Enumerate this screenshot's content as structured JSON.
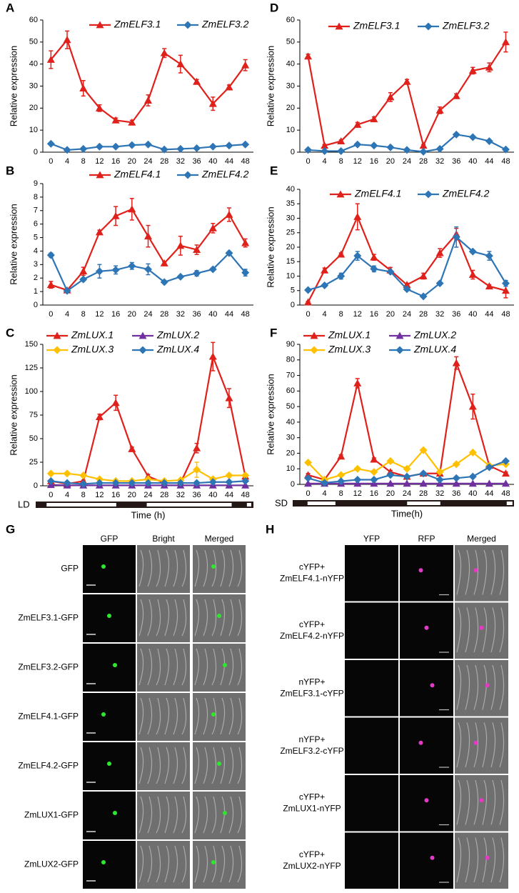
{
  "chart_data": [
    {
      "type": "line",
      "label": "A",
      "y_label": "Relative expression",
      "categories": [
        "0",
        "4",
        "8",
        "12",
        "16",
        "20",
        "24",
        "28",
        "32",
        "36",
        "40",
        "44",
        "48"
      ],
      "ylim": [
        0,
        60
      ],
      "yticks": [
        0,
        10,
        20,
        30,
        40,
        50,
        60
      ],
      "series": [
        {
          "name": "ZmELF3.1",
          "color": "#e0201b",
          "marker": "triangle",
          "values": [
            42,
            51,
            29,
            20,
            14.5,
            13.5,
            23.5,
            45,
            40,
            32,
            22,
            29.5,
            39.5
          ],
          "errors": [
            4,
            4,
            3.5,
            1.5,
            1,
            1,
            2.5,
            2,
            4,
            1,
            3,
            1,
            2.5
          ]
        },
        {
          "name": "ZmELF3.2",
          "color": "#2e75b6",
          "marker": "diamond",
          "values": [
            3.8,
            1,
            1.5,
            2.5,
            2.5,
            3.2,
            3.5,
            1.2,
            1.5,
            1.8,
            2.5,
            3,
            3.5
          ],
          "errors": [
            0.3,
            0.2,
            0.2,
            0.3,
            0.2,
            0.3,
            0.3,
            0.2,
            0.2,
            0.2,
            0.2,
            0.2,
            0.3
          ]
        }
      ]
    },
    {
      "type": "line",
      "label": "B",
      "y_label": "Relative expression",
      "categories": [
        "0",
        "4",
        "8",
        "12",
        "16",
        "20",
        "24",
        "28",
        "32",
        "36",
        "40",
        "44",
        "48"
      ],
      "ylim": [
        0,
        9
      ],
      "yticks": [
        0,
        1,
        2,
        3,
        4,
        5,
        6,
        7,
        8,
        9
      ],
      "series": [
        {
          "name": "ZmELF4.1",
          "color": "#e0201b",
          "marker": "triangle",
          "values": [
            1.5,
            1.1,
            2.5,
            5.4,
            6.6,
            7.1,
            5.1,
            3.1,
            4.4,
            4.1,
            5.7,
            6.7,
            4.6
          ],
          "errors": [
            0.25,
            0.1,
            0.3,
            0.15,
            0.7,
            0.8,
            0.8,
            0.1,
            0.7,
            0.35,
            0.35,
            0.5,
            0.3
          ]
        },
        {
          "name": "ZmELF4.2",
          "color": "#2e75b6",
          "marker": "diamond",
          "values": [
            3.7,
            1.05,
            1.9,
            2.5,
            2.6,
            2.9,
            2.65,
            1.7,
            2.1,
            2.35,
            2.65,
            3.85,
            2.4
          ],
          "errors": [
            0.15,
            0.1,
            0.1,
            0.5,
            0.3,
            0.25,
            0.4,
            0.1,
            0.1,
            0.2,
            0.1,
            0.1,
            0.25
          ]
        }
      ]
    },
    {
      "type": "line",
      "label": "C",
      "y_label": "Relative expression",
      "x_label": "Time (h)",
      "photoperiod": "LD",
      "categories": [
        "0",
        "4",
        "8",
        "12",
        "16",
        "20",
        "24",
        "28",
        "32",
        "36",
        "40",
        "44",
        "48"
      ],
      "ylim": [
        0,
        150
      ],
      "yticks": [
        0,
        25,
        50,
        75,
        100,
        125,
        150
      ],
      "series": [
        {
          "name": "ZmLUX.1",
          "color": "#e0201b",
          "marker": "triangle",
          "values": [
            5,
            2,
            5,
            73,
            88,
            39,
            10,
            3,
            3,
            40,
            137,
            93,
            10
          ],
          "errors": [
            1,
            1,
            1,
            3,
            8,
            2,
            2,
            1,
            1,
            5,
            15,
            10,
            2
          ]
        },
        {
          "name": "ZmLUX.2",
          "color": "#7030a0",
          "marker": "triangle",
          "values": [
            1,
            0.5,
            0.5,
            0.5,
            0.5,
            0.5,
            0.5,
            0.5,
            0.5,
            0.5,
            0.5,
            0.5,
            0.5
          ],
          "errors": [
            0.2,
            0.1,
            0.1,
            0.1,
            0.1,
            0.1,
            0.1,
            0.1,
            0.1,
            0.1,
            0.1,
            0.1,
            0.1
          ]
        },
        {
          "name": "ZmLUX.3",
          "color": "#ffc000",
          "marker": "diamond",
          "values": [
            13,
            13,
            11,
            7,
            5,
            5,
            7,
            5,
            6,
            17,
            7,
            11,
            11
          ],
          "errors": [
            1,
            1,
            1,
            1,
            1,
            1,
            1,
            1,
            1,
            8,
            1,
            1,
            1
          ]
        },
        {
          "name": "ZmLUX.4",
          "color": "#2e75b6",
          "marker": "diamond",
          "values": [
            5,
            3,
            2,
            3,
            3,
            3,
            3,
            3,
            3,
            3,
            4,
            4,
            5
          ],
          "errors": [
            0.5,
            0.5,
            0.5,
            0.5,
            0.5,
            0.5,
            0.5,
            0.5,
            0.5,
            0.5,
            0.5,
            0.5,
            0.5
          ]
        }
      ]
    },
    {
      "type": "line",
      "label": "D",
      "y_label": "Relative expression",
      "categories": [
        "0",
        "4",
        "8",
        "12",
        "16",
        "20",
        "24",
        "28",
        "32",
        "36",
        "40",
        "44",
        "48"
      ],
      "ylim": [
        0,
        60
      ],
      "yticks": [
        0,
        10,
        20,
        30,
        40,
        50,
        60
      ],
      "series": [
        {
          "name": "ZmELF3.1",
          "color": "#e0201b",
          "marker": "triangle",
          "values": [
            43.5,
            3,
            5,
            12.5,
            15,
            25,
            32,
            3,
            19,
            25.5,
            37,
            38.5,
            50
          ],
          "errors": [
            1,
            0.5,
            0.5,
            1,
            1,
            2,
            1,
            0.5,
            1.5,
            1,
            1.5,
            2,
            4.5
          ]
        },
        {
          "name": "ZmELF3.2",
          "color": "#2e75b6",
          "marker": "diamond",
          "values": [
            1,
            0.5,
            0.5,
            3.5,
            3,
            2.2,
            1,
            0.2,
            1.5,
            8,
            6.8,
            5,
            1.2
          ],
          "errors": [
            0.2,
            0.1,
            0.1,
            0.3,
            0.2,
            0.2,
            0.2,
            0.1,
            0.2,
            0.4,
            0.3,
            0.3,
            0.2
          ]
        }
      ]
    },
    {
      "type": "line",
      "label": "E",
      "y_label": "Relative expression",
      "categories": [
        "0",
        "4",
        "8",
        "12",
        "16",
        "20",
        "24",
        "28",
        "32",
        "36",
        "40",
        "44",
        "48"
      ],
      "ylim": [
        0,
        40
      ],
      "yticks": [
        0,
        5,
        10,
        15,
        20,
        25,
        30,
        35,
        40
      ],
      "series": [
        {
          "name": "ZmELF4.1",
          "color": "#e0201b",
          "marker": "triangle",
          "values": [
            1,
            12,
            17.5,
            30.5,
            16.5,
            12,
            7,
            10,
            18,
            24.5,
            10.5,
            6.5,
            5
          ],
          "errors": [
            0.3,
            0.8,
            0.5,
            4.5,
            1,
            1,
            0.5,
            1,
            1.5,
            2,
            1.5,
            0.5,
            2.5
          ]
        },
        {
          "name": "ZmELF4.2",
          "color": "#2e75b6",
          "marker": "diamond",
          "values": [
            5.2,
            6.8,
            10,
            17,
            12.5,
            11.5,
            5.5,
            3,
            7.5,
            23.5,
            18.5,
            17,
            7.5
          ],
          "errors": [
            0.2,
            0.3,
            1,
            1.5,
            1,
            0.5,
            0.5,
            0.2,
            0.3,
            3.5,
            0.5,
            1.5,
            1
          ]
        }
      ]
    },
    {
      "type": "line",
      "label": "F",
      "y_label": "Relative expression",
      "x_label": "Time(h)",
      "photoperiod": "SD",
      "categories": [
        "0",
        "4",
        "8",
        "12",
        "16",
        "20",
        "24",
        "28",
        "32",
        "36",
        "40",
        "44",
        "48"
      ],
      "ylim": [
        0,
        90
      ],
      "yticks": [
        0,
        10,
        20,
        30,
        40,
        50,
        60,
        70,
        80,
        90
      ],
      "series": [
        {
          "name": "ZmLUX.1",
          "color": "#e0201b",
          "marker": "triangle",
          "values": [
            6,
            3,
            18,
            65,
            16,
            8,
            5,
            7,
            7,
            78,
            50,
            12,
            7
          ],
          "errors": [
            1,
            0.5,
            1,
            3,
            1,
            1,
            0.5,
            1,
            1,
            4,
            8,
            1,
            1
          ]
        },
        {
          "name": "ZmLUX.2",
          "color": "#7030a0",
          "marker": "triangle",
          "values": [
            0.5,
            0.5,
            0.5,
            0.5,
            0.5,
            0.5,
            0.5,
            0.5,
            0.5,
            0.5,
            0.5,
            0.5,
            0.5
          ],
          "errors": [
            0.1,
            0.1,
            0.1,
            0.1,
            0.1,
            0.1,
            0.1,
            0.1,
            0.1,
            0.1,
            0.1,
            0.1,
            0.1
          ]
        },
        {
          "name": "ZmLUX.3",
          "color": "#ffc000",
          "marker": "diamond",
          "values": [
            14,
            3,
            6,
            10,
            8,
            15,
            10,
            22,
            8,
            13,
            20.5,
            12,
            13
          ],
          "errors": [
            0.5,
            0.5,
            0.5,
            0.5,
            0.5,
            0.5,
            0.5,
            0.5,
            0.5,
            0.5,
            0.5,
            0.5,
            0.5
          ]
        },
        {
          "name": "ZmLUX.4",
          "color": "#2e75b6",
          "marker": "diamond",
          "values": [
            4,
            1,
            2,
            3,
            3,
            6,
            5,
            7,
            3,
            4,
            5,
            11,
            15
          ],
          "errors": [
            0.3,
            0.2,
            0.2,
            0.3,
            0.3,
            0.3,
            0.3,
            0.3,
            0.3,
            0.3,
            0.3,
            0.5,
            0.5
          ]
        }
      ]
    }
  ],
  "panels": [
    {
      "label": "G",
      "columns": [
        "GFP",
        "Bright",
        "Merged"
      ],
      "rows": [
        "GFP",
        "ZmELF3.1-GFP",
        "ZmELF3.2-GFP",
        "ZmELF4.1-GFP",
        "ZmELF4.2-GFP",
        "ZmLUX1-GFP",
        "ZmLUX2-GFP"
      ]
    },
    {
      "label": "H",
      "columns": [
        "YFP",
        "RFP",
        "Merged"
      ],
      "rows": [
        [
          "cYFP+",
          "ZmELF4.1-nYFP"
        ],
        [
          "cYFP+",
          "ZmELF4.2-nYFP"
        ],
        [
          "nYFP+",
          "ZmELF3.1-cYFP"
        ],
        [
          "nYFP+",
          "ZmELF3.2-cYFP"
        ],
        [
          "cYFP+",
          "ZmLUX1-nYFP"
        ],
        [
          "cYFP+",
          "ZmLUX2-nYFP"
        ]
      ]
    }
  ]
}
